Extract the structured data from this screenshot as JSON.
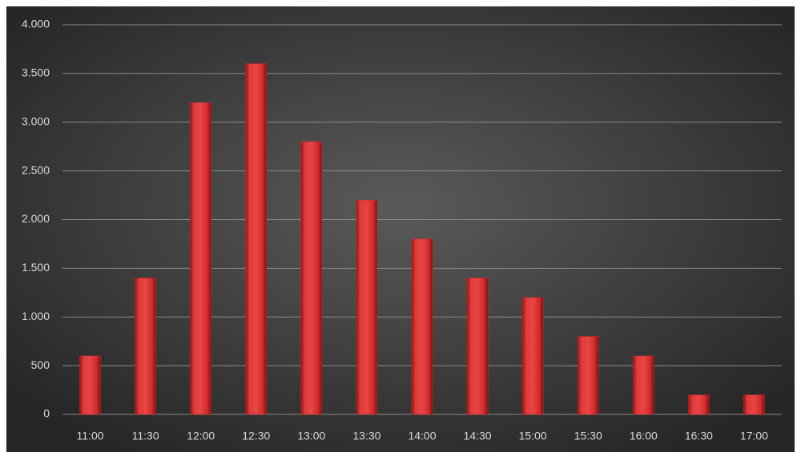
{
  "chart_data": {
    "type": "bar",
    "categories": [
      "11:00",
      "11:30",
      "12:00",
      "12:30",
      "13:00",
      "13:30",
      "14:00",
      "14:30",
      "15:00",
      "15:30",
      "16:00",
      "16:30",
      "17:00"
    ],
    "values": [
      600,
      1400,
      3200,
      3600,
      2800,
      2200,
      1800,
      1400,
      1200,
      800,
      600,
      200,
      200
    ],
    "color": "#d92b2b",
    "ylim": [
      0,
      4000
    ],
    "yticks": [
      0,
      500,
      {
        "value": 1000,
        "label": "1.000"
      },
      {
        "value": 1500,
        "label": "1.500"
      },
      {
        "value": 2000,
        "label": "2.000"
      },
      {
        "value": 2500,
        "label": "2.500"
      },
      {
        "value": 3000,
        "label": "3.000"
      },
      {
        "value": 3500,
        "label": "3.500"
      },
      {
        "value": 4000,
        "label": "4.000"
      }
    ],
    "grid": true
  }
}
